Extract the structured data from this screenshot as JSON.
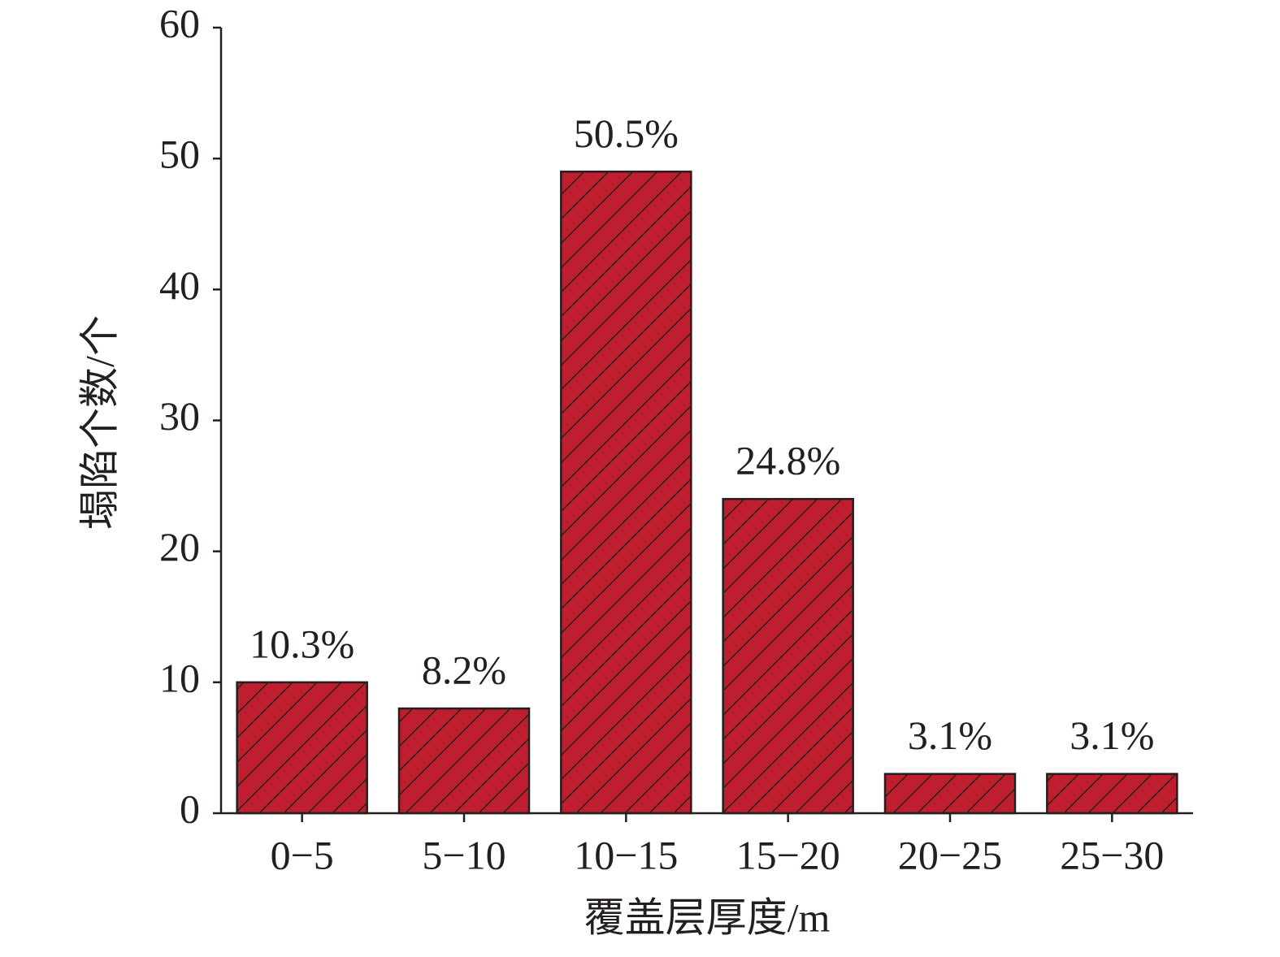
{
  "chart_data": {
    "type": "bar",
    "x_label": "覆盖层厚度/m",
    "y_label": "塌陷个数/个",
    "categories": [
      "0−5",
      "5−10",
      "10−15",
      "15−20",
      "20−25",
      "25−30"
    ],
    "values": [
      10,
      8,
      49,
      24,
      3,
      3
    ],
    "annotations": [
      "10.3%",
      "8.2%",
      "50.5%",
      "24.8%",
      "3.1%",
      "3.1%"
    ],
    "color": "#be1e2d",
    "ylim": [
      0,
      60
    ],
    "yticks": [
      0,
      10,
      20,
      30,
      40,
      50,
      60
    ],
    "grid": false
  }
}
